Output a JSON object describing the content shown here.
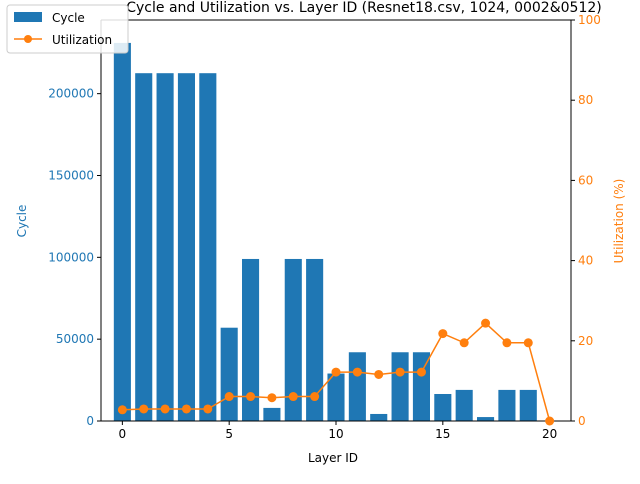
{
  "chart_data": {
    "type": "bar",
    "title": "Cycle and Utilization vs. Layer ID (Resnet18.csv, 1024, 0002&0512)",
    "xlabel": "Layer ID",
    "ylabel_left": "Cycle",
    "ylabel_right": "Utilization (%)",
    "x": [
      0,
      1,
      2,
      3,
      4,
      5,
      6,
      7,
      8,
      9,
      10,
      11,
      12,
      13,
      14,
      15,
      16,
      17,
      18,
      19,
      20
    ],
    "x_ticks": [
      0,
      5,
      10,
      15,
      20
    ],
    "xlim": [
      -1.0,
      21.0
    ],
    "ylim_left": [
      0,
      245000
    ],
    "ylim_right": [
      0,
      100
    ],
    "y_ticks_left": [
      0,
      50000,
      100000,
      150000,
      200000
    ],
    "y_ticks_right": [
      0,
      20,
      40,
      60,
      80,
      100
    ],
    "grid": false,
    "legend_placement": "top-left",
    "series": [
      {
        "name": "Cycle",
        "kind": "bar",
        "axis": "left",
        "color": "#1f77b4",
        "values": [
          231000,
          212500,
          212500,
          212500,
          212500,
          57000,
          99000,
          8000,
          99000,
          99000,
          29000,
          42000,
          4300,
          42000,
          42000,
          16500,
          19000,
          2400,
          19000,
          19000,
          0
        ]
      },
      {
        "name": "Utilization",
        "kind": "line",
        "axis": "right",
        "color": "#ff7f0e",
        "values": [
          2.8,
          3.0,
          3.0,
          3.0,
          3.0,
          6.1,
          6.1,
          5.8,
          6.1,
          6.1,
          12.2,
          12.2,
          11.6,
          12.2,
          12.2,
          21.8,
          19.5,
          24.4,
          19.5,
          19.5,
          0.0
        ]
      }
    ]
  }
}
